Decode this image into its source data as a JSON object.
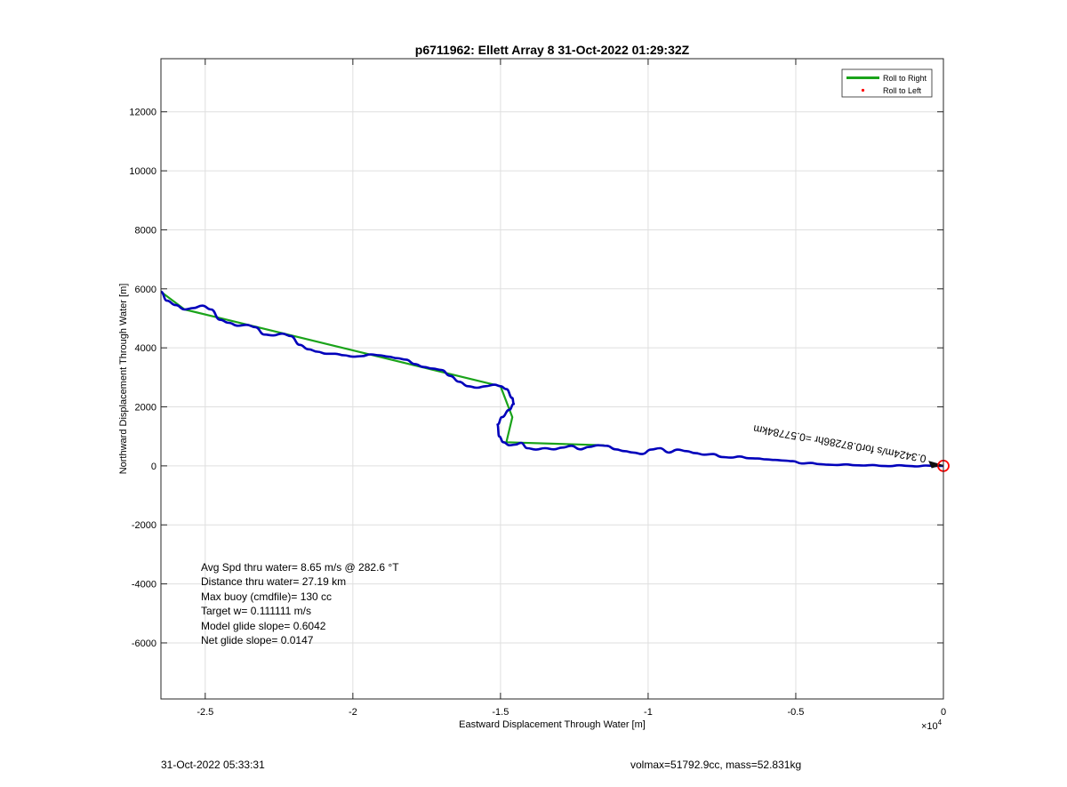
{
  "chart_data": {
    "type": "line",
    "title": "p6711962: Ellett Array 8 31-Oct-2022 01:29:32Z",
    "xlabel": "Eastward Displacement Through Water [m]",
    "ylabel": "Northward Displacement Through Water [m]",
    "x_exponent_label": "×10",
    "x_exponent_power": "4",
    "xlim": [
      -26500,
      0
    ],
    "ylim": [
      -7900,
      13800
    ],
    "x_ticks": [
      -25000,
      -20000,
      -15000,
      -10000,
      -5000,
      0
    ],
    "x_tick_labels": [
      "-2.5",
      "-2",
      "-1.5",
      "-1",
      "-0.5",
      "0"
    ],
    "y_ticks": [
      -6000,
      -4000,
      -2000,
      0,
      2000,
      4000,
      6000,
      8000,
      10000,
      12000
    ],
    "y_tick_labels": [
      "-6000",
      "-4000",
      "-2000",
      "0",
      "2000",
      "4000",
      "6000",
      "8000",
      "10000",
      "12000"
    ],
    "grid": true,
    "legend": {
      "position": "top-right",
      "entries": [
        {
          "label": "Roll to Right",
          "color": "#1aa31a",
          "marker": "line"
        },
        {
          "label": "Roll to Left",
          "color": "#ff0000",
          "marker": "dot"
        }
      ]
    },
    "series": [
      {
        "color": "#1aa31a",
        "style": "straight-segments",
        "x": [
          -26500,
          -25700,
          -15000,
          -14600,
          -14800,
          -11500
        ],
        "y": [
          5900,
          5300,
          2700,
          1650,
          800,
          700
        ]
      },
      {
        "color": "#0000bb",
        "style": "track",
        "x": [
          -26500,
          -26300,
          -26000,
          -25700,
          -25400,
          -25100,
          -24800,
          -24500,
          -24200,
          -23900,
          -23600,
          -23300,
          -23000,
          -22700,
          -22400,
          -22100,
          -21800,
          -21500,
          -21200,
          -20900,
          -20600,
          -20300,
          -20000,
          -19700,
          -19400,
          -19100,
          -18800,
          -18500,
          -18200,
          -17900,
          -17600,
          -17300,
          -17000,
          -16700,
          -16400,
          -16100,
          -15800,
          -15500,
          -15200,
          -15000,
          -14800,
          -14600,
          -14550,
          -14700,
          -14950,
          -15100,
          -15050,
          -14900,
          -14700,
          -14500,
          -14300,
          -14100,
          -13800,
          -13500,
          -13200,
          -12900,
          -12600,
          -12300,
          -12000,
          -11700,
          -11400,
          -11100,
          -10800,
          -10500,
          -10200,
          -9900,
          -9600,
          -9300,
          -9000,
          -8700,
          -8400,
          -8100,
          -7800,
          -7500,
          -7200,
          -6900,
          -6600,
          -6300,
          -6000,
          -5700,
          -5400,
          -5100,
          -4800,
          -4500,
          -4200,
          -3900,
          -3600,
          -3300,
          -3000,
          -2700,
          -2400,
          -2100,
          -1800,
          -1500,
          -1200,
          -900,
          -600,
          -300,
          0
        ],
        "y": [
          5900,
          5600,
          5450,
          5300,
          5350,
          5430,
          5300,
          4950,
          4850,
          4750,
          4780,
          4700,
          4450,
          4420,
          4480,
          4400,
          4100,
          3950,
          3870,
          3800,
          3800,
          3750,
          3700,
          3720,
          3780,
          3750,
          3700,
          3650,
          3600,
          3450,
          3350,
          3300,
          3250,
          3050,
          2850,
          2700,
          2650,
          2700,
          2750,
          2700,
          2600,
          2300,
          2100,
          1900,
          1650,
          1400,
          1000,
          800,
          700,
          720,
          780,
          600,
          550,
          600,
          560,
          620,
          680,
          560,
          640,
          700,
          680,
          560,
          500,
          450,
          400,
          550,
          600,
          450,
          550,
          500,
          430,
          380,
          400,
          300,
          280,
          320,
          260,
          250,
          220,
          200,
          180,
          160,
          80,
          100,
          60,
          40,
          30,
          50,
          20,
          10,
          30,
          0,
          -10,
          20,
          0,
          -20,
          10,
          0,
          0
        ]
      }
    ],
    "markers": [
      {
        "x": 0,
        "y": 0,
        "shape": "circle",
        "color": "#ff0000"
      }
    ],
    "annotations": [
      {
        "text": "0.3424m/s for0.87286hr =0.57784km",
        "x": -3000,
        "y": 430,
        "rotation": 190
      }
    ],
    "stats": [
      "Avg Spd thru water=  8.65 m/s @ 282.6 °T",
      "Distance thru water= 27.19 km",
      "Max buoy (cmdfile)= 130 cc",
      "Target w= 0.111111 m/s",
      "Model glide slope= 0.6042",
      "Net glide slope= 0.0147"
    ]
  },
  "footer": {
    "left": "31-Oct-2022 05:33:31",
    "right": "volmax=51792.9cc, mass=52.831kg"
  }
}
